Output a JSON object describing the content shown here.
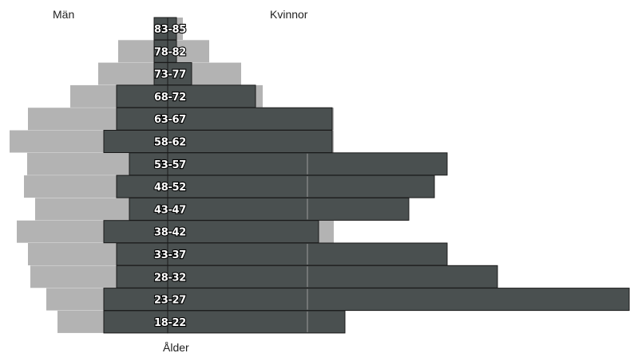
{
  "chart_data": {
    "type": "bar",
    "labels": {
      "left": "Män",
      "right": "Kvinnor",
      "bottom": "Ålder"
    },
    "categories": [
      "83-85",
      "78-82",
      "73-77",
      "68-72",
      "63-67",
      "58-62",
      "53-57",
      "48-52",
      "43-47",
      "38-42",
      "33-37",
      "28-32",
      "23-27",
      "18-22"
    ],
    "series": [
      {
        "role": "background",
        "color": "#b3b3b3",
        "men": [
          17,
          62,
          87,
          122,
          175,
          198,
          176,
          180,
          166,
          189,
          175,
          172,
          152,
          138
        ],
        "women": [
          19,
          52,
          92,
          119,
          208,
          208,
          208,
          208,
          208,
          208,
          208,
          208,
          208,
          208
        ]
      },
      {
        "role": "foreground",
        "color": "#4a5050",
        "men": [
          17,
          17,
          17,
          64,
          64,
          80,
          48,
          64,
          48,
          80,
          64,
          64,
          80,
          80
        ],
        "women": [
          11,
          11,
          30,
          110,
          206,
          206,
          350,
          334,
          302,
          189,
          350,
          413,
          578,
          222
        ]
      }
    ],
    "center_axis": "zero line between Män and Kvinnor"
  }
}
